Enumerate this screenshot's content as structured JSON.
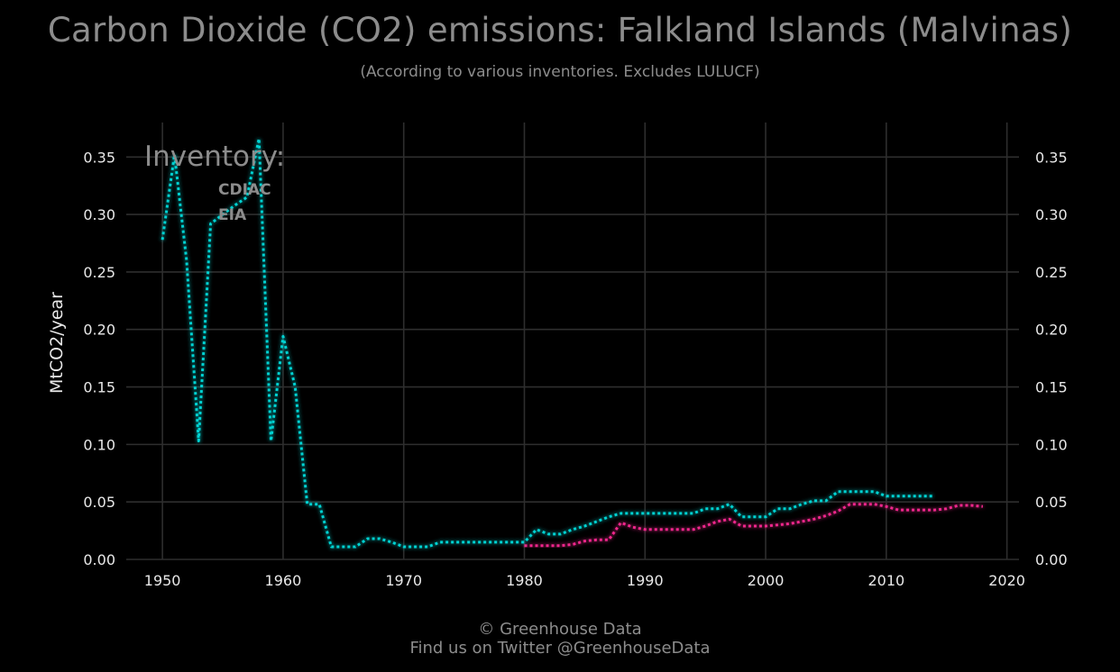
{
  "header": {
    "title": "Carbon Dioxide (CO2) emissions: Falkland Islands (Malvinas)",
    "subtitle": "(According to various inventories. Excludes LULUCF)"
  },
  "footer": {
    "line1": "© Greenhouse Data",
    "line2": "Find us on Twitter @GreenhouseData"
  },
  "chart_data": {
    "type": "line",
    "title": "Carbon Dioxide (CO2) emissions: Falkland Islands (Malvinas)",
    "subtitle": "(According to various inventories. Excludes LULUCF)",
    "xlabel": "",
    "ylabel": "MtCO2/year",
    "xlim": [
      1947,
      2021
    ],
    "ylim": [
      0,
      0.38
    ],
    "x_ticks": [
      1950,
      1960,
      1970,
      1980,
      1990,
      2000,
      2010,
      2020
    ],
    "y_ticks": [
      0.0,
      0.05,
      0.1,
      0.15,
      0.2,
      0.25,
      0.3,
      0.35
    ],
    "y_tick_labels": [
      "0.00",
      "0.05",
      "0.10",
      "0.15",
      "0.20",
      "0.25",
      "0.30",
      "0.35"
    ],
    "y_axis_both_sides": true,
    "grid": true,
    "line_style": "dotted",
    "legend": {
      "title": "Inventory:",
      "placement": "top-left"
    },
    "colors": {
      "background": "#000000",
      "grid": "#2e2e2e",
      "text": "#e8e8e8",
      "muted_text": "#8c8c8c"
    },
    "series": [
      {
        "name": "CDIAC",
        "color": "#00d2d2",
        "points": [
          [
            1950,
            0.278
          ],
          [
            1951,
            0.352
          ],
          [
            1952,
            0.26
          ],
          [
            1953,
            0.103
          ],
          [
            1954,
            0.292
          ],
          [
            1955,
            0.3
          ],
          [
            1956,
            0.308
          ],
          [
            1957,
            0.315
          ],
          [
            1958,
            0.366
          ],
          [
            1959,
            0.103
          ],
          [
            1960,
            0.194
          ],
          [
            1961,
            0.15
          ],
          [
            1962,
            0.048
          ],
          [
            1963,
            0.048
          ],
          [
            1964,
            0.011
          ],
          [
            1965,
            0.011
          ],
          [
            1966,
            0.011
          ],
          [
            1967,
            0.018
          ],
          [
            1968,
            0.018
          ],
          [
            1969,
            0.015
          ],
          [
            1970,
            0.011
          ],
          [
            1971,
            0.011
          ],
          [
            1972,
            0.011
          ],
          [
            1973,
            0.015
          ],
          [
            1974,
            0.015
          ],
          [
            1975,
            0.015
          ],
          [
            1976,
            0.015
          ],
          [
            1977,
            0.015
          ],
          [
            1978,
            0.015
          ],
          [
            1979,
            0.015
          ],
          [
            1980,
            0.015
          ],
          [
            1981,
            0.026
          ],
          [
            1982,
            0.022
          ],
          [
            1983,
            0.022
          ],
          [
            1984,
            0.026
          ],
          [
            1985,
            0.029
          ],
          [
            1986,
            0.033
          ],
          [
            1987,
            0.037
          ],
          [
            1988,
            0.04
          ],
          [
            1989,
            0.04
          ],
          [
            1990,
            0.04
          ],
          [
            1991,
            0.04
          ],
          [
            1992,
            0.04
          ],
          [
            1993,
            0.04
          ],
          [
            1994,
            0.04
          ],
          [
            1995,
            0.044
          ],
          [
            1996,
            0.044
          ],
          [
            1997,
            0.048
          ],
          [
            1998,
            0.037
          ],
          [
            1999,
            0.037
          ],
          [
            2000,
            0.037
          ],
          [
            2001,
            0.044
          ],
          [
            2002,
            0.044
          ],
          [
            2003,
            0.048
          ],
          [
            2004,
            0.051
          ],
          [
            2005,
            0.051
          ],
          [
            2006,
            0.059
          ],
          [
            2007,
            0.059
          ],
          [
            2008,
            0.059
          ],
          [
            2009,
            0.059
          ],
          [
            2010,
            0.055
          ],
          [
            2011,
            0.055
          ],
          [
            2012,
            0.055
          ],
          [
            2013,
            0.055
          ],
          [
            2014,
            0.055
          ]
        ]
      },
      {
        "name": "EIA",
        "color": "#f0288c",
        "points": [
          [
            1980,
            0.012
          ],
          [
            1981,
            0.012
          ],
          [
            1982,
            0.012
          ],
          [
            1983,
            0.012
          ],
          [
            1984,
            0.013
          ],
          [
            1985,
            0.016
          ],
          [
            1986,
            0.017
          ],
          [
            1987,
            0.017
          ],
          [
            1988,
            0.032
          ],
          [
            1989,
            0.028
          ],
          [
            1990,
            0.026
          ],
          [
            1991,
            0.026
          ],
          [
            1992,
            0.026
          ],
          [
            1993,
            0.026
          ],
          [
            1994,
            0.026
          ],
          [
            1995,
            0.029
          ],
          [
            1996,
            0.033
          ],
          [
            1997,
            0.035
          ],
          [
            1998,
            0.029
          ],
          [
            1999,
            0.029
          ],
          [
            2000,
            0.029
          ],
          [
            2001,
            0.03
          ],
          [
            2002,
            0.031
          ],
          [
            2003,
            0.033
          ],
          [
            2004,
            0.035
          ],
          [
            2005,
            0.038
          ],
          [
            2006,
            0.042
          ],
          [
            2007,
            0.048
          ],
          [
            2008,
            0.048
          ],
          [
            2009,
            0.048
          ],
          [
            2010,
            0.046
          ],
          [
            2011,
            0.043
          ],
          [
            2012,
            0.043
          ],
          [
            2013,
            0.043
          ],
          [
            2014,
            0.043
          ],
          [
            2015,
            0.044
          ],
          [
            2016,
            0.047
          ],
          [
            2017,
            0.047
          ],
          [
            2018,
            0.046
          ]
        ]
      }
    ]
  }
}
